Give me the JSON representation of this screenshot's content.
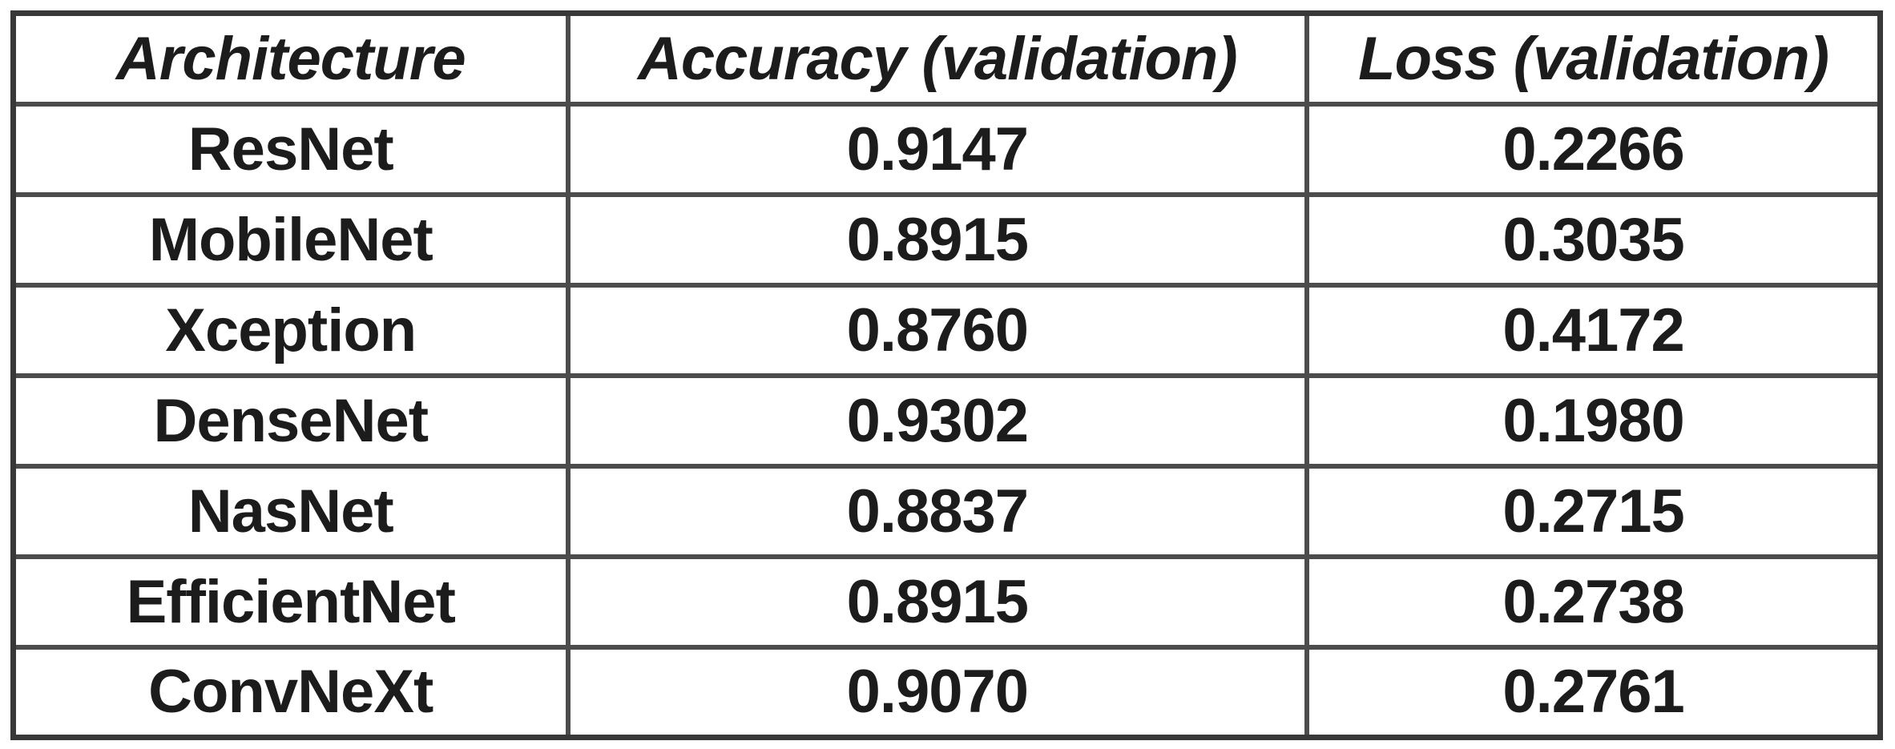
{
  "colors": {
    "background": "#ffffff",
    "outer_border": "#383838",
    "inner_border": "#4c4c4c",
    "text": "#1c1c1c"
  },
  "table": {
    "headers": [
      "Architecture",
      "Accuracy (validation)",
      "Loss (validation)"
    ],
    "rows": [
      [
        "ResNet",
        "0.9147",
        "0.2266"
      ],
      [
        "MobileNet",
        "0.8915",
        "0.3035"
      ],
      [
        "Xception",
        "0.8760",
        "0.4172"
      ],
      [
        "DenseNet",
        "0.9302",
        "0.1980"
      ],
      [
        "NasNet",
        "0.8837",
        "0.2715"
      ],
      [
        "EfficientNet",
        "0.8915",
        "0.2738"
      ],
      [
        "ConvNeXt",
        "0.9070",
        "0.2761"
      ]
    ]
  },
  "chart_data": {
    "type": "table",
    "columns": [
      "Architecture",
      "Accuracy (validation)",
      "Loss (validation)"
    ],
    "rows": [
      {
        "architecture": "ResNet",
        "accuracy_validation": 0.9147,
        "loss_validation": 0.2266
      },
      {
        "architecture": "MobileNet",
        "accuracy_validation": 0.8915,
        "loss_validation": 0.3035
      },
      {
        "architecture": "Xception",
        "accuracy_validation": 0.876,
        "loss_validation": 0.4172
      },
      {
        "architecture": "DenseNet",
        "accuracy_validation": 0.9302,
        "loss_validation": 0.198
      },
      {
        "architecture": "NasNet",
        "accuracy_validation": 0.8837,
        "loss_validation": 0.2715
      },
      {
        "architecture": "EfficientNet",
        "accuracy_validation": 0.8915,
        "loss_validation": 0.2738
      },
      {
        "architecture": "ConvNeXt",
        "accuracy_validation": 0.907,
        "loss_validation": 0.2761
      }
    ]
  }
}
